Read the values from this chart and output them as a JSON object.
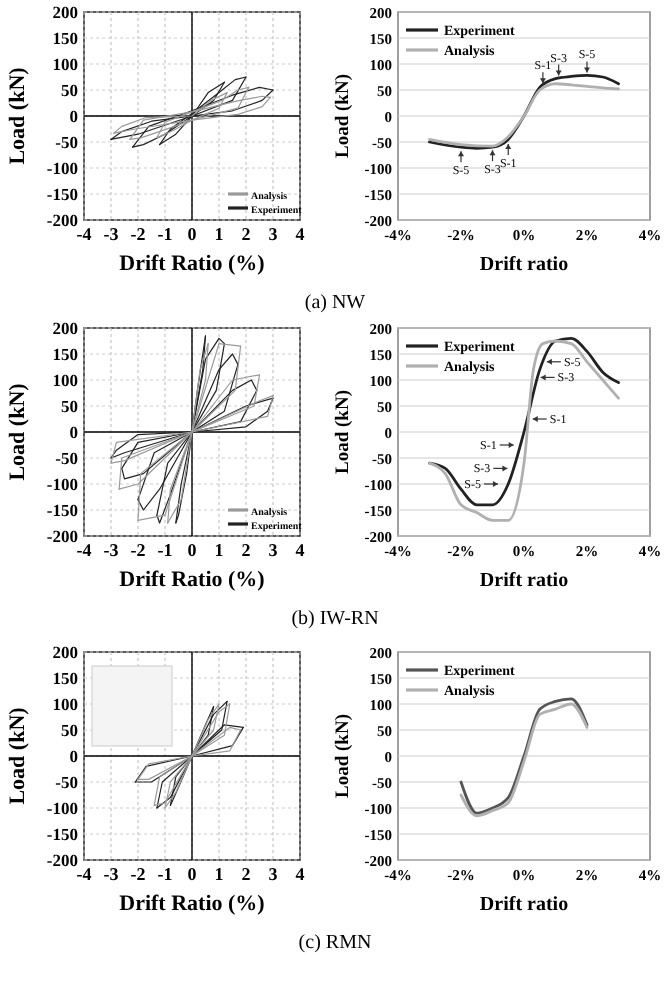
{
  "chart_data": [
    {
      "type": "line",
      "xlabel": "Drift Ratio (%)",
      "ylabel": "Load (kN)",
      "xlim": [
        -4,
        4
      ],
      "ylim": [
        -200,
        200
      ],
      "xticks": [
        -4,
        -3,
        -2,
        -1,
        0,
        1,
        2,
        3,
        4
      ],
      "yticks": [
        -200,
        -150,
        -100,
        -50,
        0,
        50,
        100,
        150,
        200
      ],
      "grid": true,
      "legend": "bottom right",
      "annotations": [
        "(a)  NW"
      ],
      "series": [
        {
          "name": "Analysis",
          "color": "#9a9a9a",
          "x": [
            -2.9,
            -2.6,
            -1.7,
            0,
            0.7,
            1.3
          ],
          "values": [
            -33,
            -20,
            -3,
            0,
            30,
            45
          ]
        },
        {
          "color": "#9a9a9a",
          "x": [
            1.3,
            1,
            0,
            -0.7,
            -1.3
          ],
          "values": [
            45,
            15,
            -8,
            -28,
            -42
          ]
        },
        {
          "color": "#9a9a9a",
          "x": [
            -1.3,
            -1,
            0,
            1.1,
            1.7,
            2.1
          ],
          "values": [
            -42,
            -12,
            8,
            30,
            50,
            55
          ]
        },
        {
          "color": "#9a9a9a",
          "x": [
            2.1,
            1.7,
            0,
            -1.1,
            -1.9,
            -2.3
          ],
          "values": [
            55,
            15,
            -8,
            -28,
            -42,
            -45
          ]
        },
        {
          "color": "#9a9a9a",
          "x": [
            -2.3,
            -1.8,
            0,
            1.6,
            2.6,
            2.9
          ],
          "values": [
            -45,
            -8,
            8,
            28,
            38,
            36
          ]
        },
        {
          "color": "#9a9a9a",
          "x": [
            2.9,
            2.6,
            1.7,
            0,
            -2.1,
            -2.9
          ],
          "values": [
            36,
            18,
            3,
            -8,
            -25,
            -33
          ]
        },
        {
          "name": "Experiment",
          "color": "#222222",
          "x": [
            0,
            0.6,
            1.2
          ],
          "values": [
            0,
            45,
            65
          ]
        },
        {
          "color": "#222222",
          "x": [
            1.2,
            0.8,
            0,
            -0.6,
            -1.2
          ],
          "values": [
            65,
            30,
            0,
            -35,
            -55
          ]
        },
        {
          "color": "#222222",
          "x": [
            -1.2,
            -0.8,
            0,
            1,
            1.6,
            2
          ],
          "values": [
            -55,
            -25,
            5,
            45,
            70,
            75
          ]
        },
        {
          "color": "#222222",
          "x": [
            2,
            1.5,
            0,
            -1,
            -1.8,
            -2.2
          ],
          "values": [
            75,
            30,
            0,
            -35,
            -55,
            -60
          ]
        },
        {
          "color": "#222222",
          "x": [
            -2.2,
            -1.6,
            0,
            1.5,
            2.5,
            3
          ],
          "values": [
            -60,
            -20,
            10,
            40,
            55,
            50
          ]
        },
        {
          "color": "#222222",
          "x": [
            3,
            2.6,
            1.5,
            0,
            -2,
            -3
          ],
          "values": [
            50,
            30,
            10,
            0,
            -35,
            -45
          ]
        },
        {
          "color": "#222222",
          "x": [
            -3,
            -2.6,
            -1.5,
            0
          ],
          "values": [
            -45,
            -30,
            -10,
            0
          ]
        }
      ]
    },
    {
      "type": "line",
      "xlabel": "Drift ratio",
      "ylabel": "Load (kN)",
      "xlim": [
        -4,
        4
      ],
      "ylim": [
        -200,
        200
      ],
      "xticks": [
        {
          "value": -4,
          "label": "-4%"
        },
        {
          "value": -2,
          "label": "-2%"
        },
        {
          "value": 0,
          "label": "0%"
        },
        {
          "value": 2,
          "label": "2%"
        },
        {
          "value": 4,
          "label": "4%"
        }
      ],
      "yticks": [
        -200,
        -150,
        -100,
        -50,
        0,
        50,
        100,
        150,
        200
      ],
      "grid": "y",
      "legend": "top left",
      "annotations": [
        {
          "text": "S-5",
          "x": -2,
          "y": -62
        },
        {
          "text": "S-3",
          "x": -1,
          "y": -60
        },
        {
          "text": "S-1",
          "x": -0.5,
          "y": -48
        },
        {
          "text": "S-1",
          "x": 0.6,
          "y": 57
        },
        {
          "text": "S-3",
          "x": 1.1,
          "y": 72
        },
        {
          "text": "S-5",
          "x": 2,
          "y": 78
        }
      ],
      "series": [
        {
          "name": "Experiment",
          "color": "#222222",
          "x": [
            -3,
            -2,
            -1.5,
            -1,
            -0.5,
            0,
            0.5,
            1,
            1.5,
            2,
            2.5,
            3
          ],
          "values": [
            -50,
            -60,
            -62,
            -60,
            -45,
            0,
            55,
            72,
            76,
            78,
            75,
            62
          ]
        },
        {
          "name": "Analysis",
          "color": "#b0b0b0",
          "x": [
            -3,
            -2,
            -1,
            -0.5,
            0,
            0.5,
            1,
            1.5,
            2,
            2.5,
            3
          ],
          "values": [
            -45,
            -55,
            -58,
            -40,
            0,
            50,
            62,
            60,
            57,
            54,
            52
          ]
        }
      ]
    },
    {
      "type": "line",
      "xlabel": "Drift Ratio (%)",
      "ylabel": "Load (kN)",
      "xlim": [
        -4,
        4
      ],
      "ylim": [
        -200,
        200
      ],
      "xticks": [
        -4,
        -3,
        -2,
        -1,
        0,
        1,
        2,
        3,
        4
      ],
      "yticks": [
        -200,
        -150,
        -100,
        -50,
        0,
        50,
        100,
        150,
        200
      ],
      "grid": true,
      "legend": "bottom right",
      "annotations": [
        "(b)  IW-RN"
      ],
      "series": [
        {
          "name": "Analysis",
          "color": "#9a9a9a",
          "x": [
            0,
            0.3,
            0.6
          ],
          "values": [
            0,
            120,
            170
          ]
        },
        {
          "color": "#9a9a9a",
          "x": [
            0.6,
            0.5,
            0,
            -0.4,
            -0.9
          ],
          "values": [
            170,
            100,
            0,
            -130,
            -175
          ]
        },
        {
          "color": "#9a9a9a",
          "x": [
            -0.9,
            -0.8,
            0,
            1,
            1.8
          ],
          "values": [
            -175,
            -110,
            0,
            170,
            165
          ]
        },
        {
          "color": "#9a9a9a",
          "x": [
            1.8,
            1.6,
            0,
            -1,
            -2
          ],
          "values": [
            165,
            80,
            0,
            -160,
            -170
          ]
        },
        {
          "color": "#9a9a9a",
          "x": [
            -2,
            -1.9,
            0,
            1.5,
            2.5
          ],
          "values": [
            -170,
            -80,
            0,
            100,
            110
          ]
        },
        {
          "color": "#9a9a9a",
          "x": [
            2.5,
            2.3,
            0,
            -2,
            -2.7
          ],
          "values": [
            110,
            50,
            0,
            -100,
            -110
          ]
        },
        {
          "color": "#9a9a9a",
          "x": [
            -2.7,
            -2.6,
            0,
            2.5,
            3
          ],
          "values": [
            -110,
            -50,
            0,
            60,
            70
          ]
        },
        {
          "color": "#9a9a9a",
          "x": [
            3,
            2.8,
            0,
            -2.5,
            -3
          ],
          "values": [
            70,
            30,
            0,
            -55,
            -60
          ]
        },
        {
          "color": "#9a9a9a",
          "x": [
            -3,
            -2.8,
            0
          ],
          "values": [
            -60,
            -20,
            0
          ]
        },
        {
          "name": "Experiment",
          "color": "#222222",
          "x": [
            0,
            0.2,
            0.4,
            0.5
          ],
          "values": [
            0,
            80,
            150,
            185
          ]
        },
        {
          "color": "#222222",
          "x": [
            0.5,
            0.4,
            0,
            -0.2,
            -0.5,
            -0.6
          ],
          "values": [
            185,
            120,
            0,
            -80,
            -160,
            -175
          ]
        },
        {
          "color": "#222222",
          "x": [
            -0.6,
            -0.4,
            0,
            0.5,
            1,
            1.2
          ],
          "values": [
            -175,
            -100,
            0,
            140,
            180,
            170
          ]
        },
        {
          "color": "#222222",
          "x": [
            1.2,
            0.9,
            0,
            -0.8,
            -1.2,
            -1.3
          ],
          "values": [
            170,
            80,
            0,
            -120,
            -175,
            -160
          ]
        },
        {
          "color": "#222222",
          "x": [
            -1.3,
            -0.9,
            0,
            1,
            1.5,
            1.7
          ],
          "values": [
            -160,
            -60,
            0,
            120,
            150,
            130
          ]
        },
        {
          "color": "#222222",
          "x": [
            1.7,
            1.2,
            0,
            -1.2,
            -1.8,
            -2
          ],
          "values": [
            130,
            40,
            0,
            -110,
            -150,
            -130
          ]
        },
        {
          "color": "#222222",
          "x": [
            -2,
            -1.4,
            0,
            1.5,
            2.2,
            2.4
          ],
          "values": [
            -130,
            -40,
            0,
            80,
            100,
            80
          ]
        },
        {
          "color": "#222222",
          "x": [
            2.4,
            1.8,
            0,
            -1.8,
            -2.5,
            -2.6
          ],
          "values": [
            80,
            20,
            0,
            -80,
            -90,
            -70
          ]
        },
        {
          "color": "#222222",
          "x": [
            -2.6,
            -2,
            0,
            2,
            3
          ],
          "values": [
            -70,
            -20,
            0,
            50,
            65
          ]
        },
        {
          "color": "#222222",
          "x": [
            3,
            2.8,
            2,
            0,
            -2.5,
            -3
          ],
          "values": [
            65,
            40,
            10,
            0,
            -40,
            -50
          ]
        },
        {
          "color": "#222222",
          "x": [
            -3,
            -2.8,
            -2,
            0
          ],
          "values": [
            -50,
            -35,
            -5,
            0
          ]
        }
      ]
    },
    {
      "type": "line",
      "xlabel": "Drift ratio",
      "ylabel": "Load (kN)",
      "xlim": [
        -4,
        4
      ],
      "ylim": [
        -200,
        200
      ],
      "xticks": [
        {
          "value": -4,
          "label": "-4%"
        },
        {
          "value": -2,
          "label": "-2%"
        },
        {
          "value": 0,
          "label": "0%"
        },
        {
          "value": 2,
          "label": "2%"
        },
        {
          "value": 4,
          "label": "4%"
        }
      ],
      "yticks": [
        -200,
        -150,
        -100,
        -50,
        0,
        50,
        100,
        150,
        200
      ],
      "grid": "y",
      "legend": "top left",
      "annotations": [
        {
          "text": "S-1",
          "x": 0.15,
          "y": 25
        },
        {
          "text": "S-3",
          "x": 0.4,
          "y": 105
        },
        {
          "text": "S-5",
          "x": 0.6,
          "y": 135
        },
        {
          "text": "S-1",
          "x": -0.2,
          "y": -25
        },
        {
          "text": "S-3",
          "x": -0.4,
          "y": -70
        },
        {
          "text": "S-5",
          "x": -0.7,
          "y": -100
        }
      ],
      "series": [
        {
          "name": "Experiment",
          "color": "#222222",
          "x": [
            -3,
            -2.5,
            -2,
            -1.5,
            -1,
            -0.5,
            0,
            0.5,
            1,
            1.5,
            2,
            2.5,
            3
          ],
          "values": [
            -60,
            -70,
            -110,
            -140,
            -140,
            -100,
            0,
            120,
            175,
            180,
            155,
            115,
            95
          ]
        },
        {
          "name": "Analysis",
          "color": "#b0b0b0",
          "x": [
            -3,
            -2.5,
            -2,
            -1.5,
            -1,
            -0.5,
            0,
            0.3,
            0.6,
            1,
            1.5,
            2,
            2.5,
            3
          ],
          "values": [
            -60,
            -80,
            -140,
            -155,
            -170,
            -170,
            -60,
            120,
            170,
            175,
            170,
            135,
            100,
            65
          ]
        }
      ]
    },
    {
      "type": "line",
      "xlabel": "Drift Ratio (%)",
      "ylabel": "Load (kN)",
      "xlim": [
        -4,
        4
      ],
      "ylim": [
        -200,
        200
      ],
      "xticks": [
        -4,
        -3,
        -2,
        -1,
        0,
        1,
        2,
        3,
        4
      ],
      "yticks": [
        -200,
        -150,
        -100,
        -50,
        0,
        50,
        100,
        150,
        200
      ],
      "grid": true,
      "annotations": [
        "(c)  RMN"
      ],
      "series": [
        {
          "color": "#9a9a9a",
          "x": [
            0,
            0.6,
            1
          ],
          "values": [
            0,
            70,
            100
          ]
        },
        {
          "color": "#9a9a9a",
          "x": [
            1,
            0.8,
            0,
            -0.6,
            -1
          ],
          "values": [
            100,
            50,
            0,
            -70,
            -100
          ]
        },
        {
          "color": "#9a9a9a",
          "x": [
            -1,
            -0.8,
            0,
            1,
            1.4
          ],
          "values": [
            -100,
            -50,
            0,
            85,
            100
          ]
        },
        {
          "color": "#9a9a9a",
          "x": [
            1.4,
            1.2,
            0,
            -1,
            -1.4
          ],
          "values": [
            100,
            40,
            0,
            -90,
            -95
          ]
        },
        {
          "color": "#9a9a9a",
          "x": [
            -1.4,
            -1.2,
            0,
            1.4,
            1.8
          ],
          "values": [
            -95,
            -40,
            0,
            55,
            50
          ]
        },
        {
          "color": "#9a9a9a",
          "x": [
            1.8,
            1.4,
            0,
            -1.6,
            -2
          ],
          "values": [
            50,
            10,
            0,
            -45,
            -45
          ]
        },
        {
          "color": "#9a9a9a",
          "x": [
            -2,
            -1.6,
            0
          ],
          "values": [
            -45,
            -15,
            0
          ]
        },
        {
          "color": "#222222",
          "x": [
            0,
            0.5,
            0.8
          ],
          "values": [
            0,
            60,
            95
          ]
        },
        {
          "color": "#222222",
          "x": [
            0.8,
            0.6,
            0,
            -0.5,
            -0.8
          ],
          "values": [
            95,
            40,
            0,
            -60,
            -95
          ]
        },
        {
          "color": "#222222",
          "x": [
            -0.8,
            -0.6,
            0,
            0.8,
            1.3
          ],
          "values": [
            -95,
            -40,
            0,
            80,
            105
          ]
        },
        {
          "color": "#222222",
          "x": [
            1.3,
            1.1,
            0,
            -0.8,
            -1.3
          ],
          "values": [
            105,
            50,
            0,
            -80,
            -100
          ]
        },
        {
          "color": "#222222",
          "x": [
            -1.3,
            -1.1,
            0,
            1.2,
            1.9
          ],
          "values": [
            -100,
            -50,
            0,
            60,
            55
          ]
        },
        {
          "color": "#222222",
          "x": [
            1.9,
            1.5,
            0,
            -1.5,
            -2.1
          ],
          "values": [
            55,
            20,
            0,
            -50,
            -50
          ]
        },
        {
          "color": "#222222",
          "x": [
            -2.1,
            -1.7,
            0
          ],
          "values": [
            -50,
            -20,
            0
          ]
        }
      ]
    },
    {
      "type": "line",
      "xlabel": "Drift ratio",
      "ylabel": "Load (kN)",
      "xlim": [
        -4,
        4
      ],
      "ylim": [
        -200,
        200
      ],
      "xticks": [
        {
          "value": -4,
          "label": "-4%"
        },
        {
          "value": -2,
          "label": "-2%"
        },
        {
          "value": 0,
          "label": "0%"
        },
        {
          "value": 2,
          "label": "2%"
        },
        {
          "value": 4,
          "label": "4%"
        }
      ],
      "yticks": [
        -200,
        -150,
        -100,
        -50,
        0,
        50,
        100,
        150,
        200
      ],
      "grid": "y",
      "legend": "top left",
      "series": [
        {
          "name": "Experiment",
          "color": "#555555",
          "x": [
            -2,
            -1.5,
            -1,
            -0.5,
            0,
            0.5,
            1,
            1.5,
            2
          ],
          "values": [
            -50,
            -110,
            -100,
            -80,
            0,
            90,
            105,
            110,
            60
          ]
        },
        {
          "name": "Analysis",
          "color": "#b0b0b0",
          "x": [
            -2,
            -1.5,
            -1,
            -0.5,
            0,
            0.5,
            1,
            1.5,
            2
          ],
          "values": [
            -75,
            -115,
            -105,
            -90,
            -10,
            80,
            90,
            100,
            55
          ]
        }
      ]
    }
  ]
}
